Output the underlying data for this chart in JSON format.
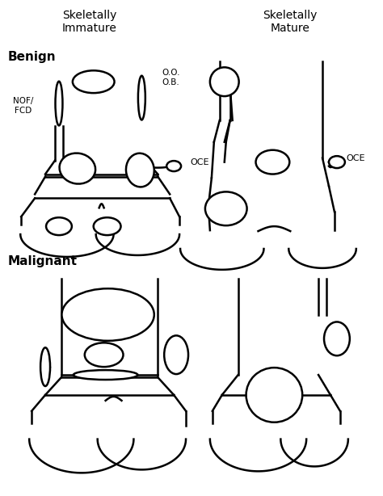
{
  "title_left": "Skeletally\nImmature",
  "title_right": "Skeletally\nMature",
  "section_benign": "Benign",
  "section_malignant": "Malignant",
  "bg_color": "#ffffff",
  "line_color": "#000000",
  "lw": 1.8,
  "fs_title": 10,
  "fs_section": 11,
  "fs_label": 8,
  "fs_small": 7.5
}
